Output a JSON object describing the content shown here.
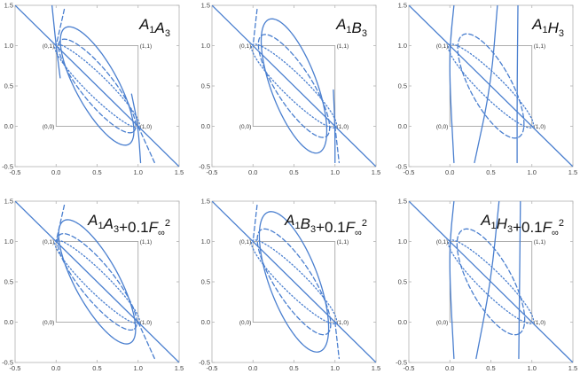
{
  "colors": {
    "curve": "#4a7fcf",
    "frame": "#b3b3b3",
    "unit_square": "#9a9a9a"
  },
  "chart_data": [
    {
      "type": "line",
      "title": "A1A3",
      "title_parts": [
        {
          "t": "A",
          "s": "1"
        },
        {
          "t": "A",
          "s": "3"
        }
      ],
      "title_suffix": null,
      "xlim": [
        -0.5,
        1.5
      ],
      "ylim": [
        -0.5,
        1.5
      ],
      "xticks": [
        "-0.5",
        "0.0",
        "0.5",
        "1.0",
        "1.5"
      ],
      "yticks": [
        "-0.5",
        "0.0",
        "0.5",
        "1.0",
        "1.5"
      ],
      "corner_labels": [
        "(0,0)",
        "(1,0)",
        "(0,1)",
        "(1,1)"
      ],
      "series": [
        {
          "style": "solid",
          "kind": "line",
          "points": [
            [
              -0.5,
              1.5
            ],
            [
              1.5,
              -0.5
            ]
          ]
        },
        {
          "style": "solid",
          "kind": "ellipse",
          "center": [
            0.5,
            0.5
          ],
          "a": 0.82,
          "b": 0.26,
          "angle": -62
        },
        {
          "style": "dashed",
          "kind": "ellipse",
          "center": [
            0.5,
            0.5
          ],
          "a": 0.72,
          "b": 0.2,
          "angle": -52
        },
        {
          "style": "dotted",
          "kind": "ellipse",
          "center": [
            0.5,
            0.5
          ],
          "a": 0.72,
          "b": 0.13,
          "angle": -45
        },
        {
          "style": "solid",
          "kind": "curve",
          "points": [
            [
              -0.05,
              1.5
            ],
            [
              0,
              1
            ],
            [
              0.05,
              0.6
            ]
          ]
        },
        {
          "style": "solid",
          "kind": "curve",
          "points": [
            [
              1.03,
              -0.45
            ],
            [
              1,
              0
            ],
            [
              0.92,
              0.4
            ]
          ]
        },
        {
          "style": "dashed",
          "kind": "curve",
          "points": [
            [
              0.1,
              1.45
            ],
            [
              0,
              1
            ]
          ]
        },
        {
          "style": "dashed",
          "kind": "curve",
          "points": [
            [
              1,
              0
            ],
            [
              1.2,
              -0.45
            ]
          ]
        }
      ]
    },
    {
      "type": "line",
      "title": "A1B3",
      "title_parts": [
        {
          "t": "A",
          "s": "1"
        },
        {
          "t": "B",
          "s": "3"
        }
      ],
      "title_suffix": null,
      "xlim": [
        -0.5,
        1.5
      ],
      "ylim": [
        -0.5,
        1.5
      ],
      "xticks": [
        "-0.5",
        "0.0",
        "0.5",
        "1.0",
        "1.5"
      ],
      "yticks": [
        "-0.5",
        "0.0",
        "0.5",
        "1.0",
        "1.5"
      ],
      "corner_labels": [
        "(0,0)",
        "(1,0)",
        "(0,1)",
        "(1,1)"
      ],
      "series": [
        {
          "style": "solid",
          "kind": "line",
          "points": [
            [
              -0.5,
              1.5
            ],
            [
              1.5,
              -0.5
            ]
          ]
        },
        {
          "style": "solid",
          "kind": "ellipse",
          "center": [
            0.5,
            0.5
          ],
          "a": 0.88,
          "b": 0.28,
          "angle": -70
        },
        {
          "style": "dashed",
          "kind": "ellipse",
          "center": [
            0.5,
            0.5
          ],
          "a": 0.74,
          "b": 0.22,
          "angle": -58
        },
        {
          "style": "dotted",
          "kind": "ellipse",
          "center": [
            0.5,
            0.5
          ],
          "a": 0.72,
          "b": 0.14,
          "angle": -45
        },
        {
          "style": "solid",
          "kind": "curve",
          "points": [
            [
              1,
              -0.45
            ],
            [
              1,
              0
            ],
            [
              0.98,
              0.45
            ]
          ]
        },
        {
          "style": "dashed",
          "kind": "curve",
          "points": [
            [
              0.05,
              1.45
            ],
            [
              0,
              1
            ]
          ]
        },
        {
          "style": "dashed",
          "kind": "curve",
          "points": [
            [
              1,
              0
            ],
            [
              1.05,
              -0.45
            ]
          ]
        }
      ]
    },
    {
      "type": "line",
      "title": "A1H3",
      "title_parts": [
        {
          "t": "A",
          "s": "1"
        },
        {
          "t": "H",
          "s": "3"
        }
      ],
      "title_suffix": null,
      "xlim": [
        -0.5,
        1.5
      ],
      "ylim": [
        -0.5,
        1.5
      ],
      "xticks": [
        "-0.5",
        "0.0",
        "0.5",
        "1.0",
        "1.5"
      ],
      "yticks": [
        "-0.5",
        "0.0",
        "0.5",
        "1.0",
        "1.5"
      ],
      "corner_labels": [
        "(0,0)",
        "(1,0)",
        "(0,1)",
        "(1,1)"
      ],
      "series": [
        {
          "style": "solid",
          "kind": "line",
          "points": [
            [
              -0.5,
              1.5
            ],
            [
              1.5,
              -0.5
            ]
          ]
        },
        {
          "style": "solid",
          "kind": "curve",
          "points": [
            [
              0.3,
              -0.45
            ],
            [
              0.5,
              0.5
            ],
            [
              0.58,
              1.5
            ]
          ]
        },
        {
          "style": "solid",
          "kind": "curve",
          "points": [
            [
              0.82,
              -0.45
            ],
            [
              0.82,
              0.5
            ],
            [
              0.83,
              1.5
            ]
          ]
        },
        {
          "style": "solid",
          "kind": "curve",
          "points": [
            [
              0.05,
              -0.45
            ],
            [
              0,
              0.5
            ],
            [
              0,
              1
            ],
            [
              0.05,
              1.5
            ]
          ]
        },
        {
          "style": "dashed",
          "kind": "ellipse",
          "center": [
            0.5,
            0.5
          ],
          "a": 0.72,
          "b": 0.25,
          "angle": -62
        },
        {
          "style": "dotted",
          "kind": "ellipse",
          "center": [
            0.5,
            0.5
          ],
          "a": 0.72,
          "b": 0.14,
          "angle": -45
        }
      ]
    },
    {
      "type": "line",
      "title": "A1A3+0.1F∞2",
      "title_parts": [
        {
          "t": "A",
          "s": "1"
        },
        {
          "t": "A",
          "s": "3"
        }
      ],
      "title_suffix": "+0.1F∞2",
      "xlim": [
        -0.5,
        1.5
      ],
      "ylim": [
        -0.5,
        1.5
      ],
      "xticks": [
        "-0.5",
        "0.0",
        "0.5",
        "1.0",
        "1.5"
      ],
      "yticks": [
        "-0.5",
        "0.0",
        "0.5",
        "1.0",
        "1.5"
      ],
      "corner_labels": [
        "(0,0)",
        "(1,0)",
        "(0,1)",
        "(1,1)"
      ],
      "series": [
        {
          "style": "solid",
          "kind": "line",
          "points": [
            [
              -0.5,
              1.5
            ],
            [
              1.5,
              -0.5
            ]
          ]
        },
        {
          "style": "solid",
          "kind": "ellipse",
          "center": [
            0.5,
            0.5
          ],
          "a": 0.86,
          "b": 0.27,
          "angle": -62
        },
        {
          "style": "dashed",
          "kind": "ellipse",
          "center": [
            0.5,
            0.5
          ],
          "a": 0.74,
          "b": 0.21,
          "angle": -52
        },
        {
          "style": "dotted",
          "kind": "ellipse",
          "center": [
            0.5,
            0.5
          ],
          "a": 0.72,
          "b": 0.13,
          "angle": -45
        },
        {
          "style": "dashed",
          "kind": "curve",
          "points": [
            [
              0.1,
              1.45
            ],
            [
              0,
              1
            ]
          ]
        },
        {
          "style": "dashed",
          "kind": "curve",
          "points": [
            [
              1,
              0
            ],
            [
              1.2,
              -0.45
            ]
          ]
        }
      ]
    },
    {
      "type": "line",
      "title": "A1B3+0.1F∞2",
      "title_parts": [
        {
          "t": "A",
          "s": "1"
        },
        {
          "t": "B",
          "s": "3"
        }
      ],
      "title_suffix": "+0.1F∞2",
      "xlim": [
        -0.5,
        1.5
      ],
      "ylim": [
        -0.5,
        1.5
      ],
      "xticks": [
        "-0.5",
        "0.0",
        "0.5",
        "1.0",
        "1.5"
      ],
      "yticks": [
        "-0.5",
        "0.0",
        "0.5",
        "1.0",
        "1.5"
      ],
      "corner_labels": [
        "(0,0)",
        "(1,0)",
        "(0,1)",
        "(1,1)"
      ],
      "series": [
        {
          "style": "solid",
          "kind": "line",
          "points": [
            [
              -0.5,
              1.5
            ],
            [
              1.5,
              -0.5
            ]
          ]
        },
        {
          "style": "solid",
          "kind": "ellipse",
          "center": [
            0.5,
            0.5
          ],
          "a": 0.92,
          "b": 0.3,
          "angle": -70
        },
        {
          "style": "dashed",
          "kind": "ellipse",
          "center": [
            0.5,
            0.5
          ],
          "a": 0.76,
          "b": 0.23,
          "angle": -58
        },
        {
          "style": "dotted",
          "kind": "ellipse",
          "center": [
            0.5,
            0.5
          ],
          "a": 0.72,
          "b": 0.14,
          "angle": -45
        },
        {
          "style": "dashed",
          "kind": "curve",
          "points": [
            [
              0.05,
              1.45
            ],
            [
              0,
              1
            ]
          ]
        },
        {
          "style": "dashed",
          "kind": "curve",
          "points": [
            [
              1,
              0
            ],
            [
              1.05,
              -0.45
            ]
          ]
        }
      ]
    },
    {
      "type": "line",
      "title": "A1H3+0.1F∞2",
      "title_parts": [
        {
          "t": "A",
          "s": "1"
        },
        {
          "t": "H",
          "s": "3"
        }
      ],
      "title_suffix": "+0.1F∞2",
      "xlim": [
        -0.5,
        1.5
      ],
      "ylim": [
        -0.5,
        1.5
      ],
      "xticks": [
        "-0.5",
        "0.0",
        "0.5",
        "1.0",
        "1.5"
      ],
      "yticks": [
        "-0.5",
        "0.0",
        "0.5",
        "1.0",
        "1.5"
      ],
      "corner_labels": [
        "(0,0)",
        "(1,0)",
        "(0,1)",
        "(1,1)"
      ],
      "series": [
        {
          "style": "solid",
          "kind": "line",
          "points": [
            [
              -0.5,
              1.5
            ],
            [
              1.5,
              -0.5
            ]
          ]
        },
        {
          "style": "solid",
          "kind": "curve",
          "points": [
            [
              0.32,
              -0.45
            ],
            [
              0.5,
              0.5
            ],
            [
              0.6,
              1.5
            ]
          ]
        },
        {
          "style": "solid",
          "kind": "curve",
          "points": [
            [
              0.84,
              -0.45
            ],
            [
              0.85,
              0.5
            ],
            [
              0.86,
              1.5
            ]
          ]
        },
        {
          "style": "solid",
          "kind": "curve",
          "points": [
            [
              0.05,
              -0.45
            ],
            [
              0,
              0.5
            ],
            [
              0,
              1
            ],
            [
              0.05,
              1.5
            ]
          ]
        },
        {
          "style": "dashed",
          "kind": "ellipse",
          "center": [
            0.5,
            0.5
          ],
          "a": 0.73,
          "b": 0.26,
          "angle": -62
        },
        {
          "style": "dotted",
          "kind": "ellipse",
          "center": [
            0.5,
            0.5
          ],
          "a": 0.72,
          "b": 0.14,
          "angle": -45
        }
      ]
    }
  ]
}
